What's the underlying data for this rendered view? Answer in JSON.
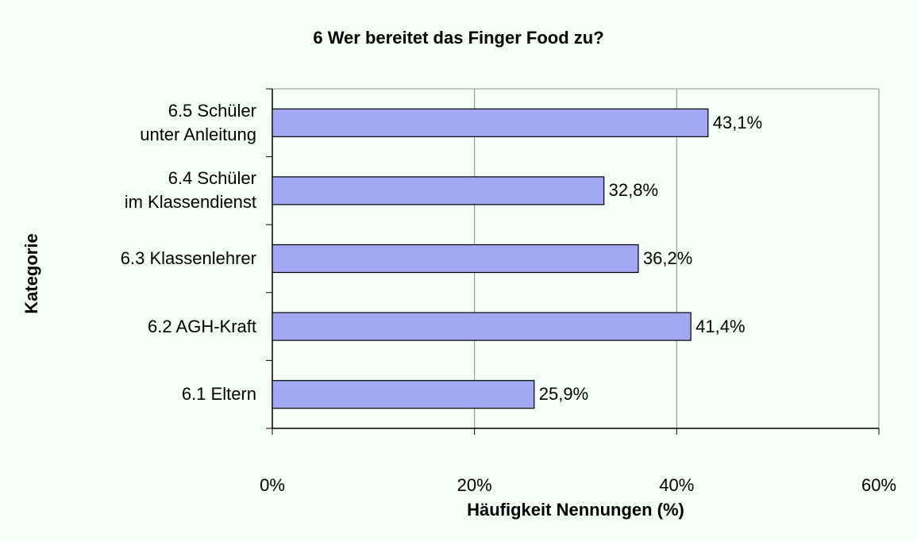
{
  "chart_data": {
    "type": "barh",
    "title": "6 Wer bereitet das Finger Food zu?",
    "x_label": "Häufigkeit Nennungen (%)",
    "y_label": "Kategorie",
    "categories": [
      "6.1 Eltern",
      "6.2 AGH-Kraft",
      "6.3 Klassenlehrer",
      "6.4 Schüler\nim Klassendienst",
      "6.5 Schüler\nunter Anleitung"
    ],
    "values": [
      25.9,
      41.4,
      36.2,
      32.8,
      43.1
    ],
    "value_labels": [
      "25,9%",
      "41,4%",
      "36,2%",
      "32,8%",
      "43,1%"
    ],
    "color": "#a3a8f2",
    "xlim": [
      0,
      60
    ],
    "xticks": [
      {
        "value": 0,
        "label": "0%"
      },
      {
        "value": 20,
        "label": "20%"
      },
      {
        "value": 40,
        "label": "40%"
      },
      {
        "value": 60,
        "label": "60%"
      }
    ],
    "grid": true
  }
}
